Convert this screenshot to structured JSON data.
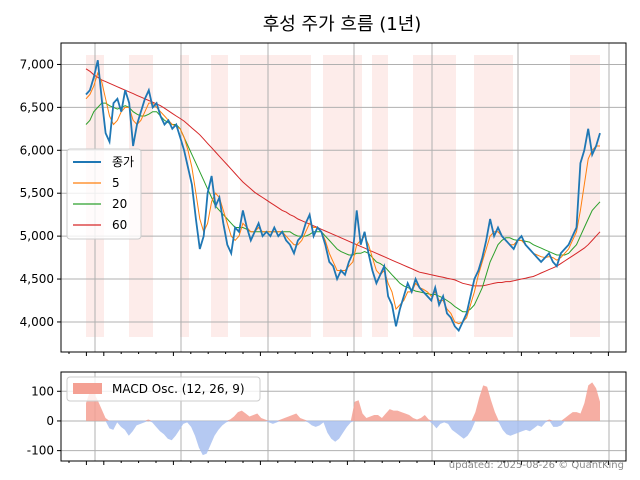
{
  "chart_data": [
    {
      "type": "line",
      "title": "후성 주가 흐름 (1년)",
      "ylim": [
        3650,
        7250
      ],
      "yticks": [
        4000,
        4500,
        5000,
        5500,
        6000,
        6500,
        7000
      ],
      "ytick_labels": [
        "4,000",
        "4,500",
        "5,000",
        "5,500",
        "6,000",
        "6,500",
        "7,000"
      ],
      "grid": true,
      "legend_position": "left",
      "colors": {
        "close": "#1f77b4",
        "ma5": "#ff7f0e",
        "ma20": "#2ca02c",
        "ma60": "#d62728",
        "shade": "#fdecea"
      },
      "series": [
        {
          "name": "종가",
          "values": [
            6650,
            6700,
            6850,
            7050,
            6600,
            6200,
            6100,
            6550,
            6600,
            6450,
            6700,
            6550,
            6050,
            6300,
            6450,
            6600,
            6700,
            6500,
            6550,
            6400,
            6300,
            6350,
            6250,
            6300,
            6150,
            6000,
            5800,
            5600,
            5200,
            4850,
            5000,
            5500,
            5700,
            5350,
            5450,
            5150,
            4900,
            4800,
            5100,
            5050,
            5300,
            5100,
            4950,
            5050,
            5150,
            5000,
            5050,
            5000,
            5100,
            5000,
            5050,
            4950,
            4900,
            4800,
            4950,
            5000,
            5150,
            5250,
            5000,
            5100,
            5050,
            4900,
            4700,
            4650,
            4500,
            4600,
            4550,
            4700,
            4800,
            5300,
            4900,
            5050,
            4800,
            4600,
            4450,
            4550,
            4650,
            4300,
            4200,
            3950,
            4150,
            4300,
            4450,
            4350,
            4500,
            4400,
            4350,
            4300,
            4250,
            4400,
            4200,
            4300,
            4100,
            4050,
            3950,
            3900,
            4000,
            4100,
            4300,
            4500,
            4600,
            4750,
            4950,
            5200,
            5000,
            5100,
            5000,
            4950,
            4900,
            4850,
            4950,
            5000,
            4900,
            4850,
            4800,
            4750,
            4700,
            4750,
            4800,
            4700,
            4650,
            4800,
            4850,
            4900,
            5000,
            5100,
            5850,
            6000,
            6250,
            5950,
            6050,
            6200
          ]
        },
        {
          "name": "5",
          "values": [
            6600,
            6650,
            6750,
            6900,
            6800,
            6600,
            6400,
            6300,
            6350,
            6450,
            6500,
            6500,
            6350,
            6300,
            6350,
            6450,
            6550,
            6550,
            6500,
            6450,
            6400,
            6350,
            6300,
            6280,
            6250,
            6150,
            6000,
            5800,
            5500,
            5200,
            5050,
            5150,
            5400,
            5500,
            5450,
            5300,
            5150,
            5000,
            4950,
            5000,
            5150,
            5100,
            5050,
            5050,
            5100,
            5050,
            5050,
            5050,
            5050,
            5050,
            5050,
            5000,
            4950,
            4900,
            4900,
            4950,
            5050,
            5150,
            5100,
            5100,
            5050,
            4950,
            4800,
            4700,
            4600,
            4600,
            4600,
            4650,
            4700,
            4900,
            4950,
            5000,
            4900,
            4750,
            4600,
            4550,
            4600,
            4450,
            4350,
            4150,
            4200,
            4250,
            4350,
            4350,
            4450,
            4400,
            4380,
            4350,
            4300,
            4350,
            4250,
            4250,
            4150,
            4100,
            4000,
            3980,
            4000,
            4050,
            4200,
            4350,
            4550,
            4700,
            4850,
            5000,
            5050,
            5050,
            5000,
            4950,
            4900,
            4900,
            4950,
            4950,
            4900,
            4850,
            4800,
            4780,
            4760,
            4750,
            4760,
            4750,
            4720,
            4750,
            4800,
            4850,
            4950,
            5050,
            5300,
            5600,
            5900,
            6000,
            6050,
            6050
          ]
        },
        {
          "name": "20",
          "values": [
            6300,
            6350,
            6450,
            6500,
            6550,
            6550,
            6520,
            6500,
            6480,
            6500,
            6520,
            6500,
            6450,
            6420,
            6400,
            6400,
            6420,
            6450,
            6450,
            6400,
            6350,
            6320,
            6300,
            6300,
            6250,
            6150,
            6050,
            5950,
            5850,
            5750,
            5650,
            5550,
            5450,
            5350,
            5300,
            5250,
            5200,
            5150,
            5100,
            5100,
            5100,
            5080,
            5050,
            5050,
            5050,
            5050,
            5050,
            5050,
            5050,
            5050,
            5050,
            5050,
            5050,
            5020,
            5000,
            5000,
            5000,
            5020,
            5050,
            5050,
            5050,
            5000,
            4950,
            4900,
            4850,
            4820,
            4800,
            4780,
            4780,
            4800,
            4800,
            4820,
            4800,
            4750,
            4700,
            4680,
            4650,
            4600,
            4550,
            4500,
            4450,
            4420,
            4400,
            4380,
            4360,
            4350,
            4340,
            4330,
            4320,
            4320,
            4300,
            4280,
            4250,
            4220,
            4180,
            4150,
            4120,
            4120,
            4150,
            4200,
            4300,
            4400,
            4550,
            4700,
            4800,
            4900,
            4950,
            4980,
            4980,
            4960,
            4950,
            4950,
            4940,
            4930,
            4900,
            4880,
            4860,
            4840,
            4820,
            4800,
            4780,
            4780,
            4780,
            4800,
            4850,
            4900,
            5000,
            5100,
            5200,
            5300,
            5350,
            5400
          ]
        },
        {
          "name": "60",
          "values": [
            6950,
            6920,
            6880,
            6850,
            6820,
            6800,
            6780,
            6760,
            6740,
            6720,
            6700,
            6680,
            6660,
            6640,
            6620,
            6600,
            6580,
            6560,
            6540,
            6520,
            6490,
            6460,
            6430,
            6400,
            6370,
            6340,
            6300,
            6260,
            6220,
            6180,
            6130,
            6080,
            6030,
            5980,
            5930,
            5880,
            5830,
            5780,
            5730,
            5680,
            5630,
            5590,
            5550,
            5510,
            5480,
            5450,
            5420,
            5390,
            5360,
            5330,
            5300,
            5280,
            5250,
            5230,
            5200,
            5180,
            5160,
            5140,
            5120,
            5100,
            5080,
            5060,
            5040,
            5020,
            5000,
            4980,
            4960,
            4940,
            4920,
            4900,
            4880,
            4860,
            4840,
            4820,
            4800,
            4780,
            4760,
            4740,
            4720,
            4700,
            4680,
            4660,
            4640,
            4620,
            4600,
            4580,
            4570,
            4560,
            4550,
            4540,
            4530,
            4520,
            4510,
            4500,
            4490,
            4470,
            4450,
            4440,
            4430,
            4420,
            4420,
            4420,
            4430,
            4440,
            4450,
            4460,
            4460,
            4470,
            4470,
            4480,
            4490,
            4500,
            4510,
            4520,
            4530,
            4550,
            4570,
            4590,
            4610,
            4630,
            4650,
            4680,
            4710,
            4740,
            4770,
            4800,
            4830,
            4860,
            4900,
            4950,
            5000,
            5050
          ]
        }
      ]
    },
    {
      "type": "area",
      "ylim": [
        -135,
        165
      ],
      "yticks": [
        -100,
        0,
        100
      ],
      "ytick_labels": [
        "-100",
        "0",
        "100"
      ],
      "grid": true,
      "legend_position": "top-left",
      "colors": {
        "positive": "#f4a093",
        "negative": "#a8bff0"
      },
      "series": [
        {
          "name": "MACD Osc. (12, 26, 9)",
          "values": [
            60,
            100,
            95,
            70,
            40,
            10,
            -25,
            -30,
            -5,
            -20,
            -30,
            -50,
            -35,
            -15,
            -10,
            -5,
            5,
            -5,
            -20,
            -35,
            -45,
            -60,
            -65,
            -50,
            -30,
            -10,
            -5,
            -20,
            -50,
            -90,
            -115,
            -110,
            -80,
            -50,
            -30,
            -15,
            -5,
            5,
            15,
            30,
            35,
            25,
            15,
            20,
            25,
            10,
            5,
            -5,
            -10,
            -5,
            5,
            10,
            15,
            20,
            25,
            10,
            5,
            -5,
            -15,
            -20,
            -15,
            -5,
            -40,
            -60,
            -70,
            -60,
            -40,
            -20,
            -5,
            65,
            70,
            25,
            10,
            15,
            20,
            20,
            10,
            25,
            40,
            35,
            35,
            30,
            25,
            20,
            10,
            5,
            10,
            20,
            5,
            -10,
            -25,
            -10,
            -5,
            -10,
            -30,
            -40,
            -50,
            -60,
            -50,
            -30,
            30,
            80,
            120,
            115,
            70,
            30,
            -5,
            -30,
            -45,
            -50,
            -45,
            -40,
            -35,
            -30,
            -35,
            -25,
            -15,
            -20,
            -5,
            5,
            -20,
            -20,
            -15,
            10,
            20,
            30,
            30,
            25,
            60,
            120,
            130,
            110,
            65
          ]
        }
      ]
    }
  ],
  "footer": "updated: 2025-08-26 © QuantKing"
}
